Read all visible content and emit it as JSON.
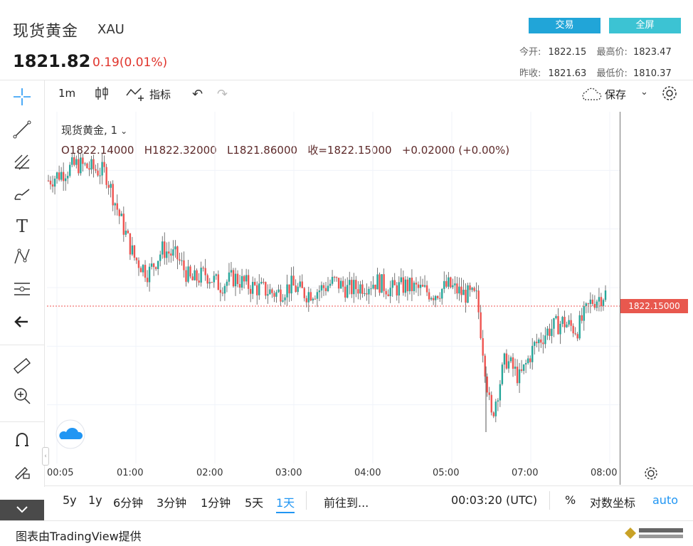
{
  "header": {
    "title": "现货黄金",
    "symbol": "XAU",
    "price": "1821.82",
    "change": "0.19(0.01%)",
    "trade_label": "交易",
    "fullscreen_label": "全屏",
    "open_label": "今开:",
    "open_value": "1822.15",
    "high_label": "最高价:",
    "high_value": "1823.47",
    "prev_close_label": "昨收:",
    "prev_close_value": "1821.63",
    "low_label": "最低价:",
    "low_value": "1810.37"
  },
  "toolbar": {
    "interval": "1m",
    "indicators_label": "指标",
    "save_label": "保存"
  },
  "legend": {
    "name": "现货黄金, 1",
    "ohlc": "O1822.14000   H1822.32000   L1821.86000   收=1822.15000   +0.02000 (+0.00%)"
  },
  "price_tag": "1822.15000",
  "x_axis": [
    "00:05",
    "01:00",
    "02:00",
    "03:00",
    "04:00",
    "05:00",
    "06:00",
    "07:00",
    "08:00"
  ],
  "bottom_bar": {
    "ranges": [
      "5y",
      "1y",
      "6分钟",
      "3分钟",
      "1分钟",
      "5天",
      "1天"
    ],
    "active_range": "1天",
    "goto_label": "前往到...",
    "time_label": "00:03:20 (UTC)",
    "percent_label": "%",
    "log_label": "对数坐标",
    "auto_label": "auto"
  },
  "footer": {
    "credit": "图表由TradingView提供"
  },
  "chart_data": {
    "type": "candlestick",
    "x": [
      "00:05",
      "00:15",
      "00:25",
      "00:35",
      "00:45",
      "00:50",
      "00:55",
      "01:00",
      "01:10",
      "01:20",
      "01:30",
      "01:40",
      "01:50",
      "02:00",
      "02:15",
      "02:30",
      "02:45",
      "03:00",
      "03:15",
      "03:30",
      "03:45",
      "04:00",
      "04:15",
      "04:30",
      "04:45",
      "05:00",
      "05:15",
      "05:30",
      "05:45",
      "06:00",
      "06:15",
      "06:30",
      "06:40",
      "06:50",
      "07:00",
      "07:15",
      "07:30",
      "07:45",
      "08:00",
      "08:05"
    ],
    "y": [
      1822.9,
      1823.1,
      1823.3,
      1823.2,
      1823.1,
      1822.0,
      1821.0,
      1820.6,
      1821.2,
      1821.0,
      1820.4,
      1820.6,
      1820.3,
      1820.5,
      1820.3,
      1820.2,
      1820.1,
      1820.3,
      1820.1,
      1820.2,
      1820.4,
      1820.2,
      1820.3,
      1820.4,
      1820.2,
      1820.3,
      1820.2,
      1820.1,
      1820.3,
      1820.1,
      1820.0,
      1817.0,
      1818.5,
      1818.0,
      1818.8,
      1819.2,
      1819.4,
      1819.2,
      1819.9,
      1820.1
    ],
    "last_price": 1822.15,
    "grid": true
  }
}
